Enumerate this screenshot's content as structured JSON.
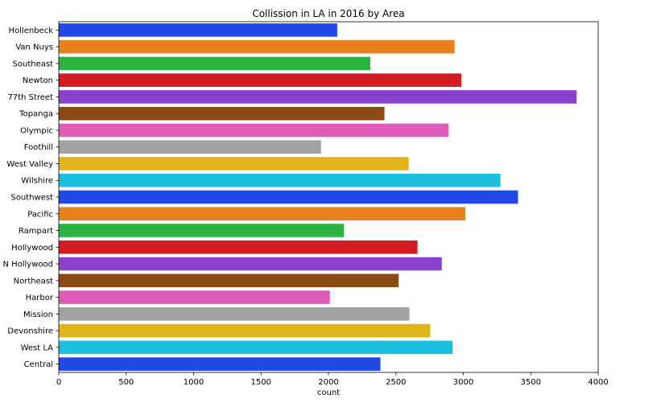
{
  "chart_data": {
    "type": "bar",
    "orientation": "horizontal",
    "title": "Collission in LA in 2016 by Area",
    "xlabel": "count",
    "ylabel": "",
    "xlim": [
      0,
      4000
    ],
    "xticks": [
      0,
      500,
      1000,
      1500,
      2000,
      2500,
      3000,
      3500,
      4000
    ],
    "grid": false,
    "categories": [
      "Hollenbeck",
      "Van Nuys",
      "Southeast",
      "Newton",
      "77th Street",
      "Topanga",
      "Olympic",
      "Foothill",
      "West Valley",
      "Wilshire",
      "Southwest",
      "Pacific",
      "Rampart",
      "Hollywood",
      "N Hollywood",
      "Northeast",
      "Harbor",
      "Mission",
      "Devonshire",
      "West LA",
      "Central"
    ],
    "values": [
      2065,
      2935,
      2310,
      2985,
      3840,
      2415,
      2890,
      1945,
      2595,
      3275,
      3405,
      3015,
      2115,
      2660,
      2840,
      2520,
      2010,
      2600,
      2755,
      2920,
      2385
    ],
    "colors": [
      "#1f4ae8",
      "#e8821e",
      "#2bb43f",
      "#d11c24",
      "#8940cd",
      "#8b4a12",
      "#de5bba",
      "#a2a2a2",
      "#e0b41d",
      "#1cc0de",
      "#1f4ae8",
      "#e8821e",
      "#2bb43f",
      "#d11c24",
      "#8940cd",
      "#8b4a12",
      "#de5bba",
      "#a2a2a2",
      "#e0b41d",
      "#1cc0de",
      "#1f4ae8"
    ]
  }
}
